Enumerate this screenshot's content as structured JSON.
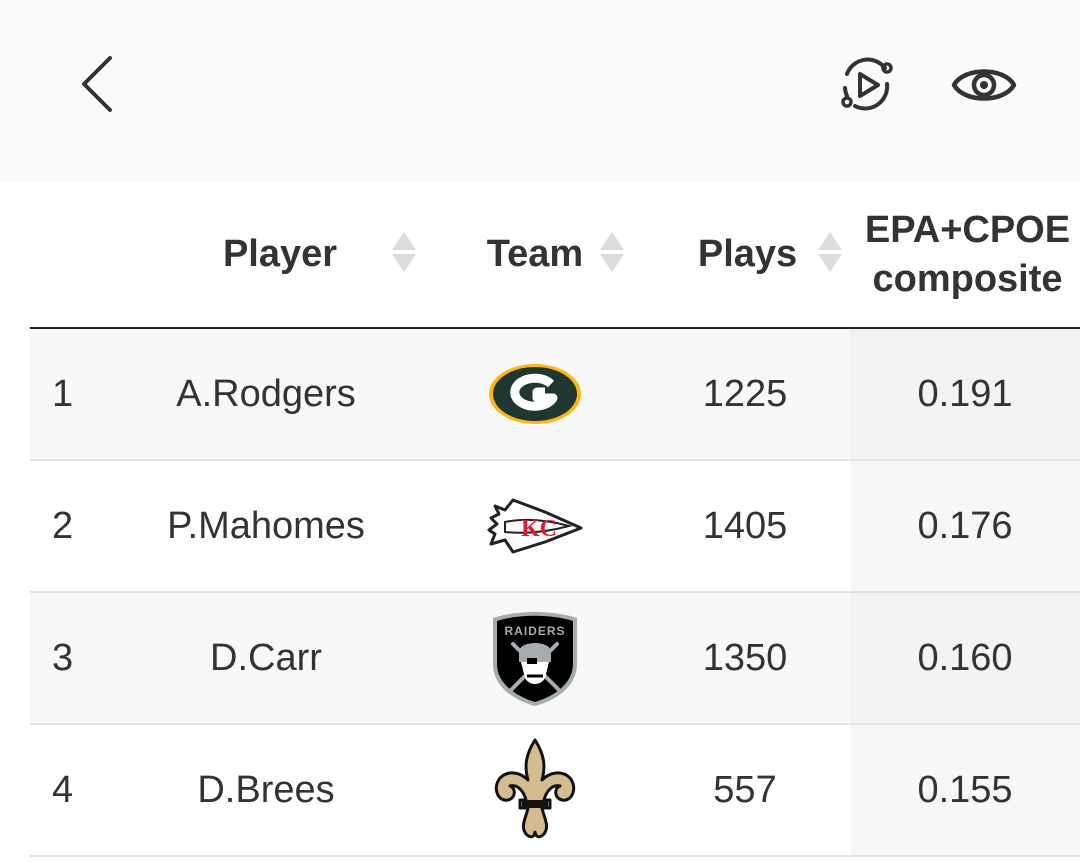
{
  "header": {
    "back_icon": "chevron-left-icon",
    "actions": [
      {
        "icon": "replay-video-icon"
      },
      {
        "icon": "eye-icon"
      }
    ]
  },
  "table": {
    "columns": [
      {
        "key": "rank",
        "label": ""
      },
      {
        "key": "player",
        "label": "Player"
      },
      {
        "key": "team",
        "label": "Team"
      },
      {
        "key": "plays",
        "label": "Plays"
      },
      {
        "key": "epa_cpoe",
        "label_line1": "EPA+CPOE",
        "label_line2": "composite"
      }
    ],
    "rows": [
      {
        "rank": "1",
        "player": "A.Rodgers",
        "team": "GB",
        "team_logo": "packers-logo",
        "plays": "1225",
        "epa_cpoe": "0.191"
      },
      {
        "rank": "2",
        "player": "P.Mahomes",
        "team": "KC",
        "team_logo": "chiefs-logo",
        "plays": "1405",
        "epa_cpoe": "0.176"
      },
      {
        "rank": "3",
        "player": "D.Carr",
        "team": "LV",
        "team_logo": "raiders-logo",
        "team_logo_text": "RAIDERS",
        "plays": "1350",
        "epa_cpoe": "0.160"
      },
      {
        "rank": "4",
        "player": "D.Brees",
        "team": "NO",
        "team_logo": "saints-logo",
        "plays": "557",
        "epa_cpoe": "0.155"
      }
    ]
  },
  "colors": {
    "packers_green": "#203731",
    "packers_gold": "#FFB612",
    "chiefs_red": "#E31837",
    "raiders_black": "#000000",
    "raiders_silver": "#A5ACAF",
    "saints_gold": "#D3BC8D"
  }
}
